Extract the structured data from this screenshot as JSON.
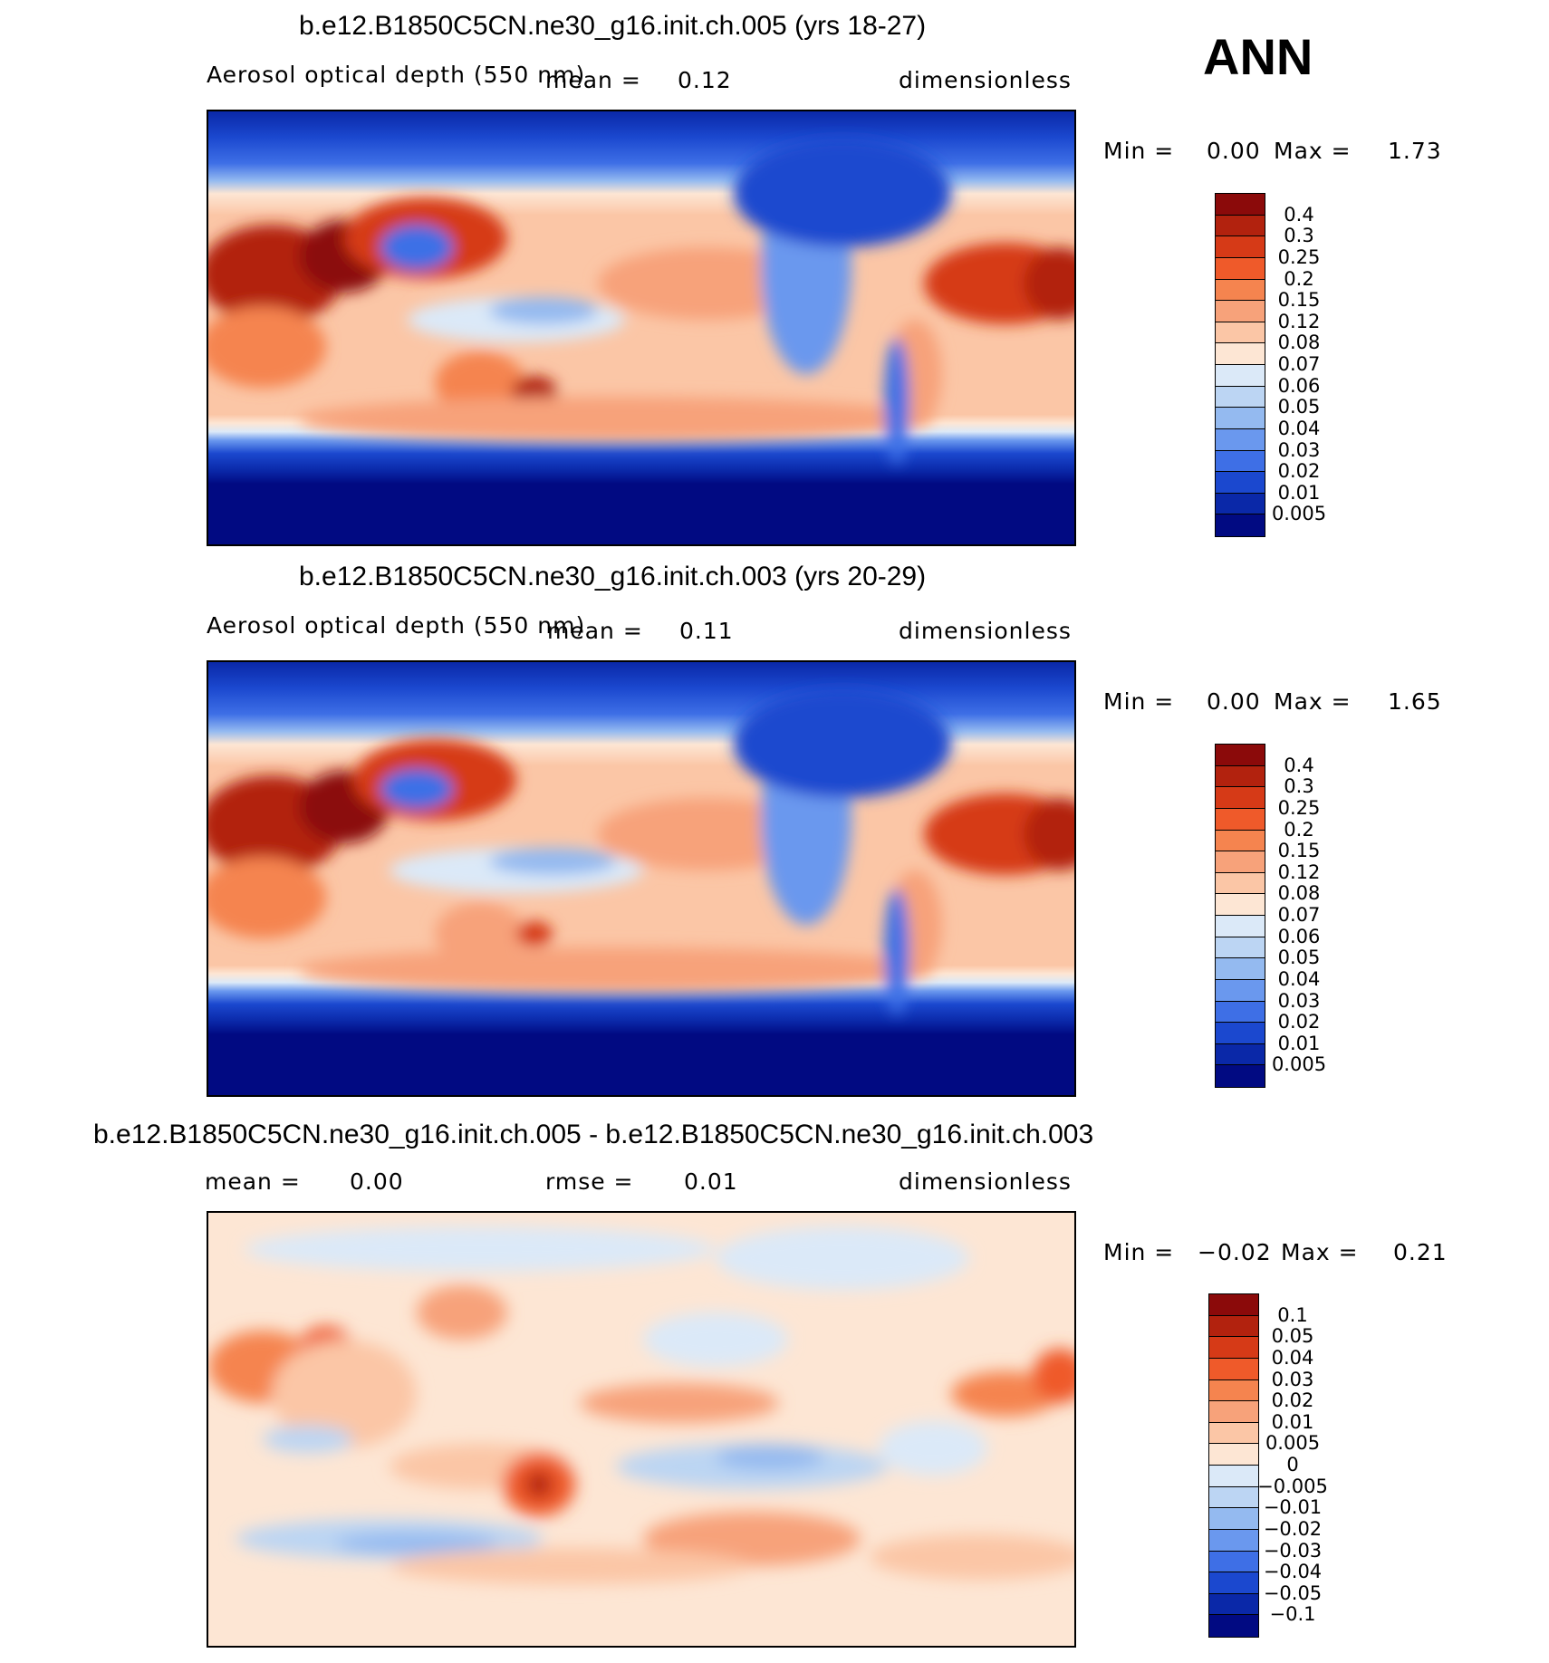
{
  "season": "ANN",
  "panels": [
    {
      "title": "b.e12.B1850C5CN.ne30_g16.init.ch.005 (yrs 18-27)",
      "variable": "Aerosol optical depth (550 nm)",
      "stat_label": "mean =",
      "stat_value": "0.12",
      "units": "dimensionless",
      "min_label": "Min =",
      "min_value": "0.00",
      "max_label": "Max =",
      "max_value": "1.73"
    },
    {
      "title": "b.e12.B1850C5CN.ne30_g16.init.ch.003 (yrs 20-29)",
      "variable": "Aerosol optical depth (550 nm)",
      "stat_label": "mean =",
      "stat_value": "0.11",
      "units": "dimensionless",
      "min_label": "Min =",
      "min_value": "0.00",
      "max_label": "Max =",
      "max_value": "1.65"
    },
    {
      "title": "b.e12.B1850C5CN.ne30_g16.init.ch.005 - b.e12.B1850C5CN.ne30_g16.init.ch.003",
      "mean_label": "mean =",
      "mean_value": "0.00",
      "rmse_label": "rmse =",
      "rmse_value": "0.01",
      "units": "dimensionless",
      "min_label": "Min =",
      "min_value": "−0.02",
      "max_label": "Max =",
      "max_value": "0.21"
    }
  ],
  "chart_data": [
    {
      "type": "heatmap",
      "title": "b.e12.B1850C5CN.ne30_g16.init.ch.005 (yrs 18-27)",
      "variable": "Aerosol optical depth (550 nm)",
      "units": "dimensionless",
      "mean": 0.12,
      "min": 0.0,
      "max": 1.73,
      "colorbar_levels": [
        "0.4",
        "0.3",
        "0.25",
        "0.2",
        "0.15",
        "0.12",
        "0.08",
        "0.07",
        "0.06",
        "0.05",
        "0.04",
        "0.03",
        "0.02",
        "0.01",
        "0.005"
      ],
      "colorbar_colors": [
        "#8b0a0a",
        "#b2220e",
        "#d63a17",
        "#ef5a2a",
        "#f5844f",
        "#f7a27a",
        "#fbc6a6",
        "#fde6d4",
        "#dbe9f8",
        "#bcd5f3",
        "#94baf0",
        "#6a98ee",
        "#3e6fe6",
        "#1b48cf",
        "#0a28a8",
        "#010a82"
      ]
    },
    {
      "type": "heatmap",
      "title": "b.e12.B1850C5CN.ne30_g16.init.ch.003 (yrs 20-29)",
      "variable": "Aerosol optical depth (550 nm)",
      "units": "dimensionless",
      "mean": 0.11,
      "min": 0.0,
      "max": 1.65,
      "colorbar_levels": [
        "0.4",
        "0.3",
        "0.25",
        "0.2",
        "0.15",
        "0.12",
        "0.08",
        "0.07",
        "0.06",
        "0.05",
        "0.04",
        "0.03",
        "0.02",
        "0.01",
        "0.005"
      ],
      "colorbar_colors": [
        "#8b0a0a",
        "#b2220e",
        "#d63a17",
        "#ef5a2a",
        "#f5844f",
        "#f7a27a",
        "#fbc6a6",
        "#fde6d4",
        "#dbe9f8",
        "#bcd5f3",
        "#94baf0",
        "#6a98ee",
        "#3e6fe6",
        "#1b48cf",
        "#0a28a8",
        "#010a82"
      ]
    },
    {
      "type": "heatmap",
      "title": "b.e12.B1850C5CN.ne30_g16.init.ch.005 - b.e12.B1850C5CN.ne30_g16.init.ch.003",
      "units": "dimensionless",
      "mean": 0.0,
      "rmse": 0.01,
      "min": -0.02,
      "max": 0.21,
      "colorbar_levels": [
        "0.1",
        "0.05",
        "0.04",
        "0.03",
        "0.02",
        "0.01",
        "0.005",
        "0",
        "−0.005",
        "−0.01",
        "−0.02",
        "−0.03",
        "−0.04",
        "−0.05",
        "−0.1"
      ],
      "colorbar_colors": [
        "#8b0a0a",
        "#b2220e",
        "#d63a17",
        "#ef5a2a",
        "#f5844f",
        "#f7a27a",
        "#fbc6a6",
        "#fde6d4",
        "#dbe9f8",
        "#bcd5f3",
        "#94baf0",
        "#6a98ee",
        "#3e6fe6",
        "#1b48cf",
        "#0a28a8",
        "#010a82"
      ]
    }
  ]
}
